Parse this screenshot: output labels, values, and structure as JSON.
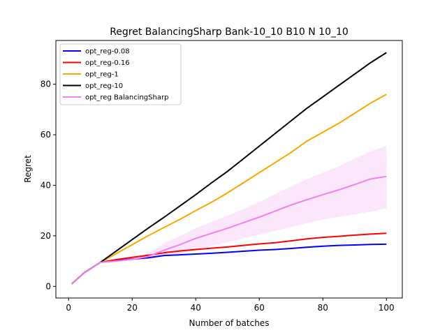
{
  "chart_data": {
    "type": "line",
    "title": "Regret BalancingSharp Bank-10_10 B10 N 10_10",
    "xlabel": "Number of batches",
    "ylabel": "Regret",
    "xlim": [
      -4,
      105
    ],
    "ylim": [
      -4.6,
      97.3
    ],
    "xticks": [
      "0",
      "20",
      "40",
      "60",
      "80",
      "100"
    ],
    "yticks": [
      "0",
      "20",
      "40",
      "60",
      "80"
    ],
    "grid": false,
    "legend_position": "top-left",
    "series": [
      {
        "name": "opt_reg-0.08",
        "color": "#0000ff",
        "x": [
          1,
          5,
          10,
          15,
          20,
          25,
          30,
          35,
          40,
          45,
          50,
          55,
          60,
          65,
          70,
          75,
          80,
          85,
          90,
          95,
          100
        ],
        "y": [
          1,
          5.5,
          9.5,
          10.2,
          10.8,
          11.3,
          12.2,
          12.5,
          12.8,
          13.1,
          13.5,
          13.9,
          14.3,
          14.6,
          15.0,
          15.5,
          15.9,
          16.2,
          16.4,
          16.6,
          16.7
        ]
      },
      {
        "name": "opt_reg-0.16",
        "color": "#ff0000",
        "x": [
          1,
          5,
          10,
          15,
          20,
          25,
          30,
          35,
          40,
          45,
          50,
          55,
          60,
          65,
          70,
          75,
          80,
          85,
          90,
          95,
          100
        ],
        "y": [
          1,
          5.5,
          9.5,
          10.6,
          11.5,
          12.3,
          13.3,
          14.0,
          14.6,
          15.1,
          15.6,
          16.2,
          16.8,
          17.3,
          18.0,
          18.8,
          19.4,
          19.8,
          20.3,
          20.7,
          21.0
        ]
      },
      {
        "name": "opt_reg-1",
        "color": "#ffa500",
        "x": [
          1,
          5,
          10,
          15,
          20,
          25,
          30,
          35,
          40,
          45,
          50,
          55,
          60,
          65,
          70,
          75,
          80,
          85,
          90,
          95,
          100
        ],
        "y": [
          1,
          5.5,
          9.5,
          13,
          16.5,
          20,
          23.3,
          26.5,
          30,
          33.3,
          37,
          41,
          45,
          49,
          53,
          57.5,
          61,
          64.5,
          68.5,
          72.5,
          76
        ]
      },
      {
        "name": "opt_reg-10",
        "color": "#000000",
        "x": [
          1,
          5,
          10,
          15,
          20,
          25,
          30,
          35,
          40,
          45,
          50,
          55,
          60,
          65,
          70,
          75,
          80,
          85,
          90,
          95,
          100
        ],
        "y": [
          1,
          5.5,
          9.5,
          14,
          18.5,
          23,
          27.3,
          31.8,
          36.3,
          41,
          45.5,
          50.5,
          55.5,
          60.5,
          65.5,
          70.5,
          75,
          79.5,
          84,
          88.5,
          92.5
        ]
      },
      {
        "name": "opt_reg BalancingSharp",
        "color": "#ee82ee",
        "x": [
          1,
          5,
          10,
          15,
          20,
          25,
          30,
          35,
          40,
          45,
          50,
          55,
          60,
          65,
          70,
          75,
          80,
          85,
          90,
          95,
          100
        ],
        "y": [
          1,
          5.5,
          9.5,
          10.0,
          10.7,
          11.8,
          14.3,
          16.5,
          19.0,
          21.0,
          23.0,
          25.2,
          27.4,
          29.8,
          32.2,
          34.3,
          36.3,
          38.2,
          40.3,
          42.5,
          43.5
        ],
        "band_upper": [
          1,
          5.5,
          9.5,
          10.2,
          11.0,
          13.0,
          17.0,
          20.0,
          23.0,
          25.5,
          28.0,
          30.5,
          33.5,
          36.5,
          39.5,
          42.5,
          45.0,
          47.5,
          50.5,
          53.5,
          55.5
        ],
        "band_lower": [
          1,
          5.5,
          9.5,
          9.8,
          10.3,
          10.8,
          11.8,
          13.0,
          14.5,
          16.0,
          17.5,
          19.0,
          20.5,
          22.0,
          23.5,
          25.0,
          26.5,
          27.5,
          28.5,
          29.5,
          31.0
        ]
      }
    ]
  }
}
